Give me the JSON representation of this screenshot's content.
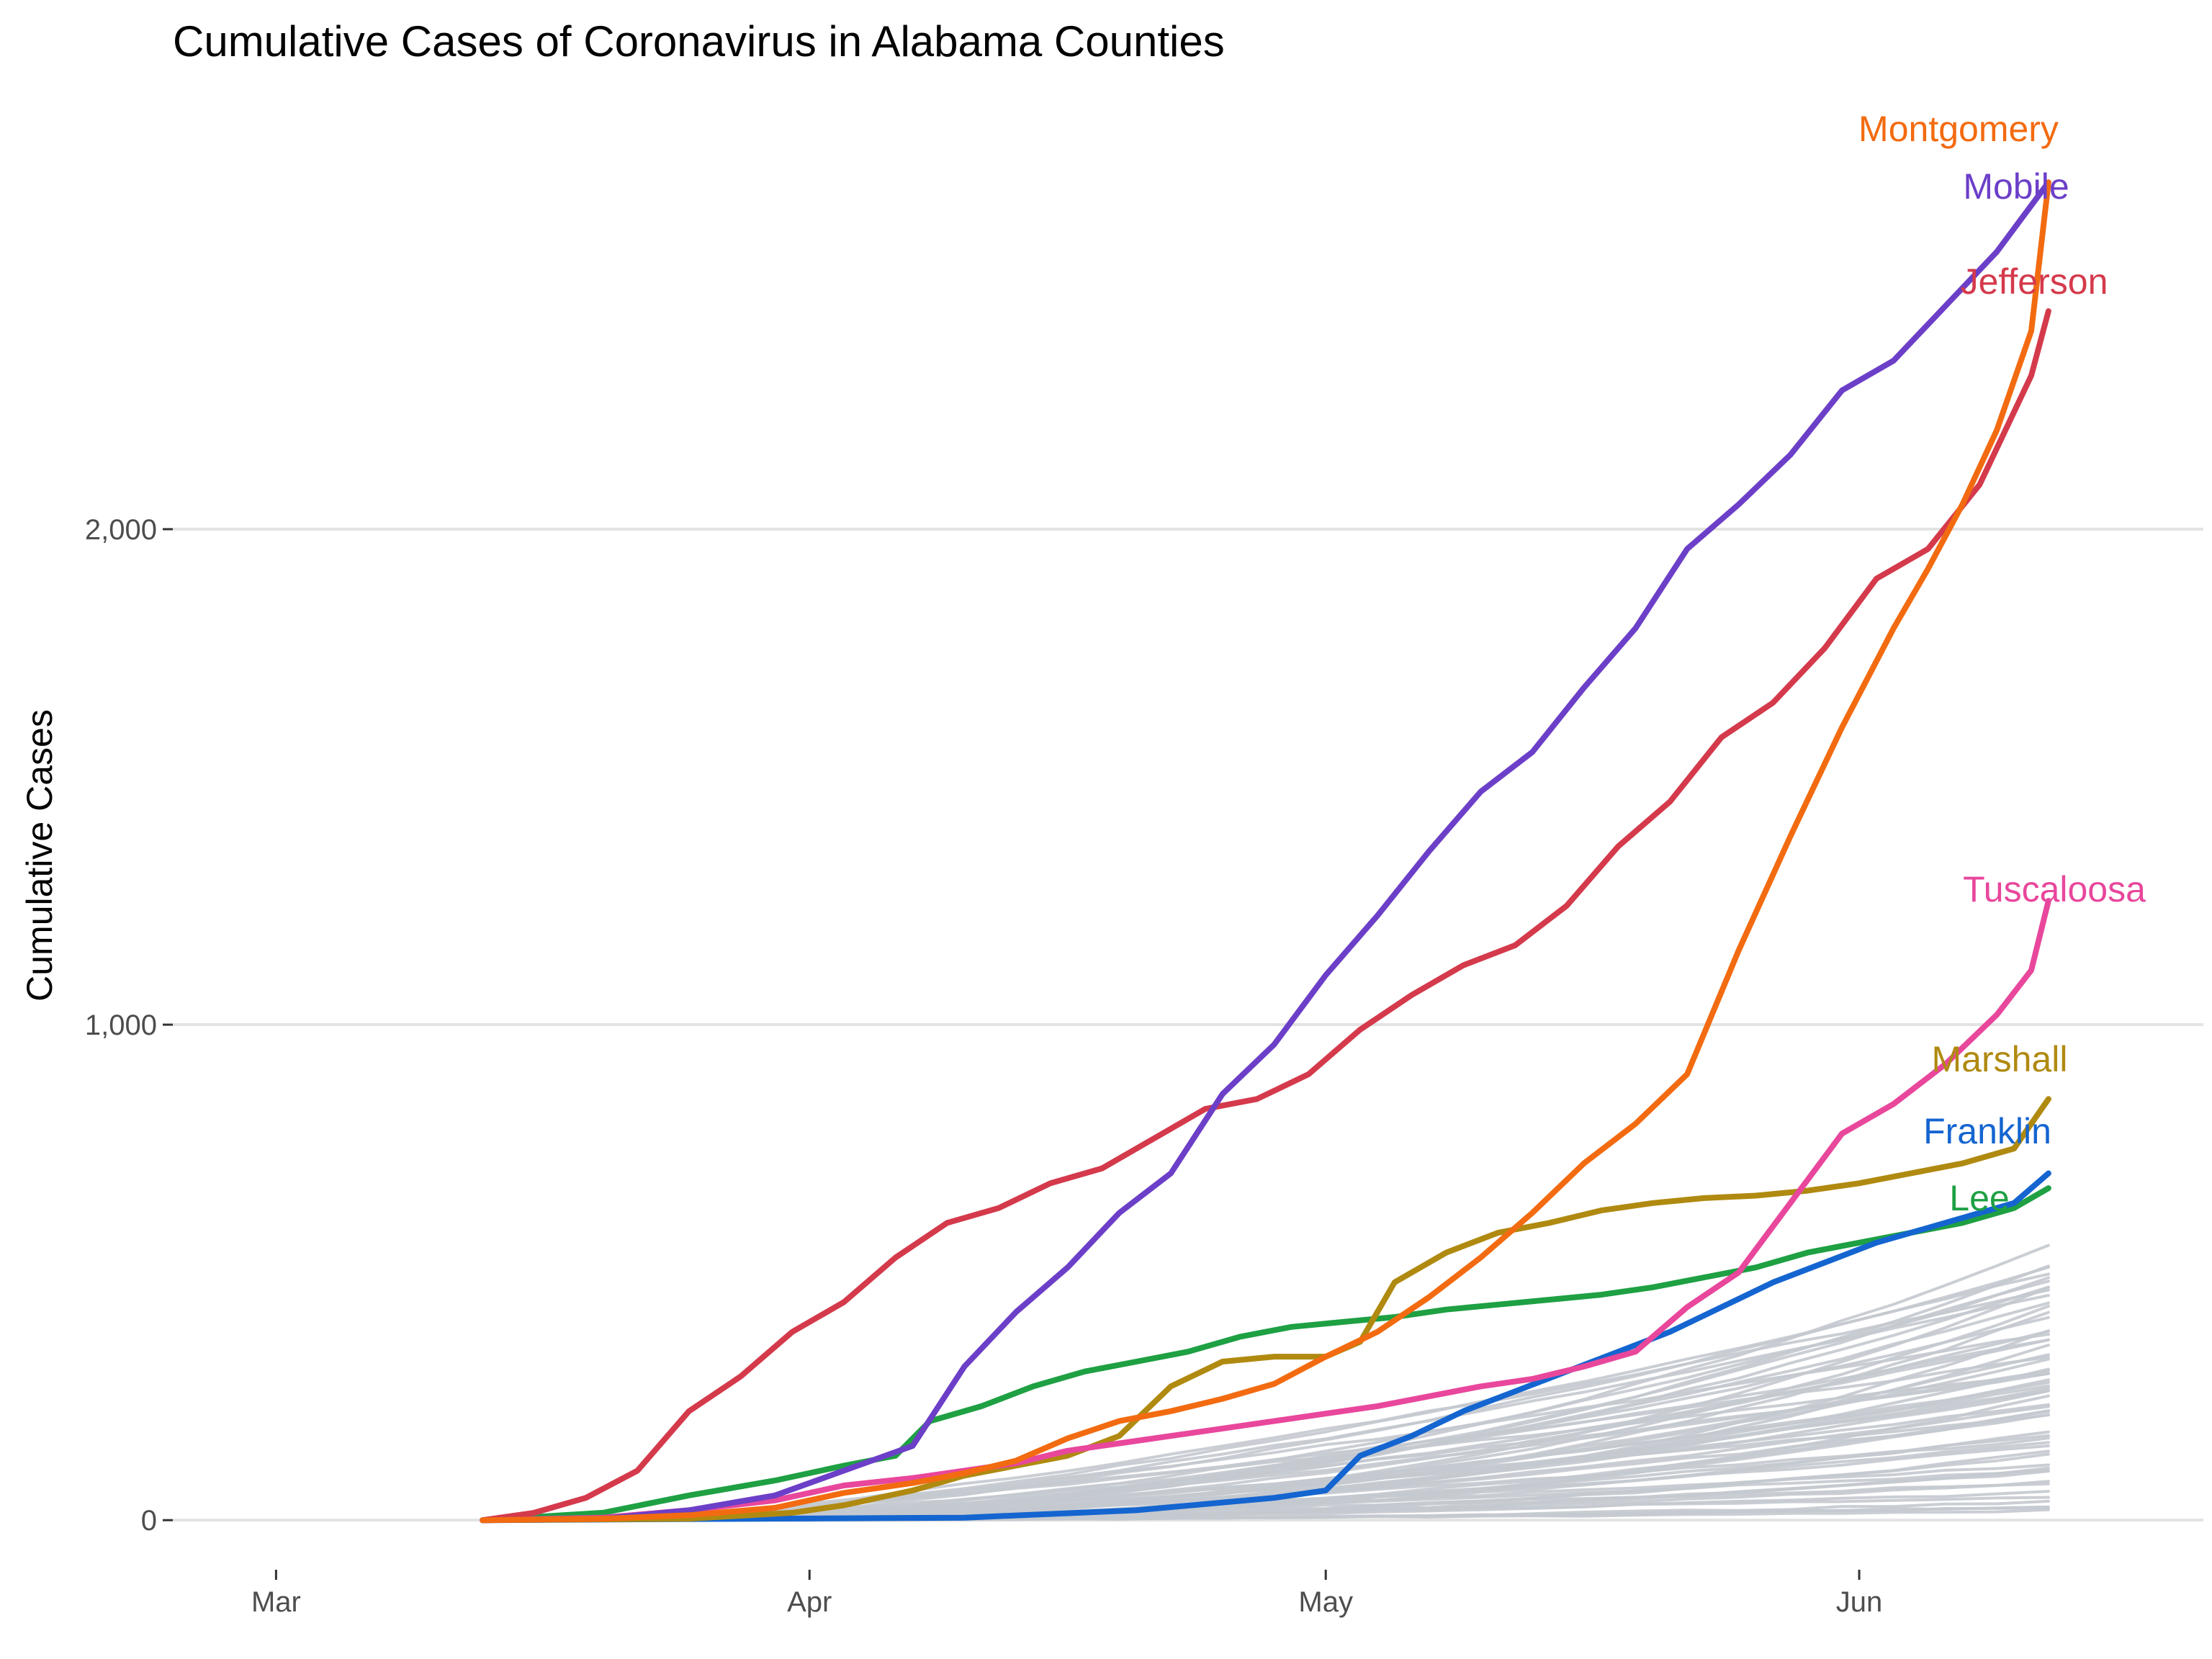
{
  "chart_data": {
    "type": "line",
    "title": "Cumulative Cases of Coronavirus in Alabama Counties",
    "xlabel": "",
    "ylabel": "Cumulative Cases",
    "x_range": [
      "2020-02-24",
      "2020-06-21"
    ],
    "ylim": [
      -100,
      2850
    ],
    "x_ticks": [
      {
        "date": "2020-03-01",
        "label": "Mar"
      },
      {
        "date": "2020-04-01",
        "label": "Apr"
      },
      {
        "date": "2020-05-01",
        "label": "May"
      },
      {
        "date": "2020-06-01",
        "label": "Jun"
      }
    ],
    "y_ticks": [
      {
        "value": 0,
        "label": "0"
      },
      {
        "value": 1000,
        "label": "1,000"
      },
      {
        "value": 2000,
        "label": "2,000"
      }
    ],
    "grid": "horizontal-major",
    "legend": "direct-labels-right",
    "highlighted_series": [
      {
        "name": "Montgomery",
        "color": "#f36b10",
        "points": [
          [
            "2020-03-13",
            0
          ],
          [
            "2020-03-20",
            3
          ],
          [
            "2020-03-25",
            10
          ],
          [
            "2020-03-30",
            25
          ],
          [
            "2020-04-03",
            55
          ],
          [
            "2020-04-07",
            75
          ],
          [
            "2020-04-10",
            95
          ],
          [
            "2020-04-13",
            120
          ],
          [
            "2020-04-16",
            165
          ],
          [
            "2020-04-19",
            200
          ],
          [
            "2020-04-22",
            220
          ],
          [
            "2020-04-25",
            245
          ],
          [
            "2020-04-28",
            275
          ],
          [
            "2020-05-01",
            330
          ],
          [
            "2020-05-04",
            380
          ],
          [
            "2020-05-07",
            450
          ],
          [
            "2020-05-10",
            530
          ],
          [
            "2020-05-13",
            620
          ],
          [
            "2020-05-16",
            720
          ],
          [
            "2020-05-19",
            800
          ],
          [
            "2020-05-22",
            900
          ],
          [
            "2020-05-25",
            1150
          ],
          [
            "2020-05-28",
            1380
          ],
          [
            "2020-05-31",
            1600
          ],
          [
            "2020-06-03",
            1800
          ],
          [
            "2020-06-05",
            1920
          ],
          [
            "2020-06-07",
            2050
          ],
          [
            "2020-06-09",
            2200
          ],
          [
            "2020-06-11",
            2400
          ],
          [
            "2020-06-12",
            2700
          ]
        ]
      },
      {
        "name": "Mobile",
        "color": "#6c3fc8",
        "points": [
          [
            "2020-03-13",
            0
          ],
          [
            "2020-03-20",
            3
          ],
          [
            "2020-03-25",
            20
          ],
          [
            "2020-03-30",
            50
          ],
          [
            "2020-04-03",
            100
          ],
          [
            "2020-04-07",
            150
          ],
          [
            "2020-04-10",
            310
          ],
          [
            "2020-04-13",
            420
          ],
          [
            "2020-04-16",
            510
          ],
          [
            "2020-04-19",
            620
          ],
          [
            "2020-04-22",
            700
          ],
          [
            "2020-04-25",
            860
          ],
          [
            "2020-04-28",
            960
          ],
          [
            "2020-05-01",
            1100
          ],
          [
            "2020-05-04",
            1220
          ],
          [
            "2020-05-07",
            1350
          ],
          [
            "2020-05-10",
            1470
          ],
          [
            "2020-05-13",
            1550
          ],
          [
            "2020-05-16",
            1680
          ],
          [
            "2020-05-19",
            1800
          ],
          [
            "2020-05-22",
            1960
          ],
          [
            "2020-05-25",
            2050
          ],
          [
            "2020-05-28",
            2150
          ],
          [
            "2020-05-31",
            2280
          ],
          [
            "2020-06-03",
            2340
          ],
          [
            "2020-06-06",
            2450
          ],
          [
            "2020-06-09",
            2560
          ],
          [
            "2020-06-12",
            2700
          ]
        ]
      },
      {
        "name": "Jefferson",
        "color": "#d43a4b",
        "points": [
          [
            "2020-03-13",
            0
          ],
          [
            "2020-03-16",
            15
          ],
          [
            "2020-03-19",
            45
          ],
          [
            "2020-03-22",
            100
          ],
          [
            "2020-03-25",
            220
          ],
          [
            "2020-03-28",
            290
          ],
          [
            "2020-03-31",
            380
          ],
          [
            "2020-04-03",
            440
          ],
          [
            "2020-04-06",
            530
          ],
          [
            "2020-04-09",
            600
          ],
          [
            "2020-04-12",
            630
          ],
          [
            "2020-04-15",
            680
          ],
          [
            "2020-04-18",
            710
          ],
          [
            "2020-04-21",
            770
          ],
          [
            "2020-04-24",
            830
          ],
          [
            "2020-04-27",
            850
          ],
          [
            "2020-04-30",
            900
          ],
          [
            "2020-05-03",
            990
          ],
          [
            "2020-05-06",
            1060
          ],
          [
            "2020-05-09",
            1120
          ],
          [
            "2020-05-12",
            1160
          ],
          [
            "2020-05-15",
            1240
          ],
          [
            "2020-05-18",
            1360
          ],
          [
            "2020-05-21",
            1450
          ],
          [
            "2020-05-24",
            1580
          ],
          [
            "2020-05-27",
            1650
          ],
          [
            "2020-05-30",
            1760
          ],
          [
            "2020-06-02",
            1900
          ],
          [
            "2020-06-05",
            1960
          ],
          [
            "2020-06-08",
            2090
          ],
          [
            "2020-06-11",
            2310
          ],
          [
            "2020-06-12",
            2440
          ]
        ]
      },
      {
        "name": "Tuscaloosa",
        "color": "#e8479c",
        "points": [
          [
            "2020-03-13",
            0
          ],
          [
            "2020-03-20",
            5
          ],
          [
            "2020-03-25",
            20
          ],
          [
            "2020-03-30",
            40
          ],
          [
            "2020-04-03",
            70
          ],
          [
            "2020-04-07",
            85
          ],
          [
            "2020-04-10",
            100
          ],
          [
            "2020-04-13",
            115
          ],
          [
            "2020-04-16",
            140
          ],
          [
            "2020-04-19",
            155
          ],
          [
            "2020-04-22",
            170
          ],
          [
            "2020-04-25",
            185
          ],
          [
            "2020-04-28",
            200
          ],
          [
            "2020-05-01",
            215
          ],
          [
            "2020-05-04",
            230
          ],
          [
            "2020-05-07",
            250
          ],
          [
            "2020-05-10",
            270
          ],
          [
            "2020-05-13",
            285
          ],
          [
            "2020-05-16",
            310
          ],
          [
            "2020-05-19",
            340
          ],
          [
            "2020-05-22",
            430
          ],
          [
            "2020-05-25",
            500
          ],
          [
            "2020-05-28",
            640
          ],
          [
            "2020-05-31",
            780
          ],
          [
            "2020-06-03",
            840
          ],
          [
            "2020-06-06",
            920
          ],
          [
            "2020-06-09",
            1020
          ],
          [
            "2020-06-11",
            1110
          ],
          [
            "2020-06-12",
            1250
          ]
        ]
      },
      {
        "name": "Marshall",
        "color": "#b08a10",
        "points": [
          [
            "2020-03-13",
            0
          ],
          [
            "2020-03-25",
            3
          ],
          [
            "2020-03-31",
            15
          ],
          [
            "2020-04-03",
            30
          ],
          [
            "2020-04-07",
            60
          ],
          [
            "2020-04-10",
            90
          ],
          [
            "2020-04-13",
            110
          ],
          [
            "2020-04-16",
            130
          ],
          [
            "2020-04-19",
            170
          ],
          [
            "2020-04-22",
            270
          ],
          [
            "2020-04-25",
            320
          ],
          [
            "2020-04-28",
            330
          ],
          [
            "2020-05-01",
            330
          ],
          [
            "2020-05-03",
            360
          ],
          [
            "2020-05-05",
            480
          ],
          [
            "2020-05-08",
            540
          ],
          [
            "2020-05-11",
            580
          ],
          [
            "2020-05-14",
            600
          ],
          [
            "2020-05-17",
            625
          ],
          [
            "2020-05-20",
            640
          ],
          [
            "2020-05-23",
            650
          ],
          [
            "2020-05-26",
            655
          ],
          [
            "2020-05-29",
            665
          ],
          [
            "2020-06-01",
            680
          ],
          [
            "2020-06-04",
            700
          ],
          [
            "2020-06-07",
            720
          ],
          [
            "2020-06-10",
            750
          ],
          [
            "2020-06-12",
            850
          ]
        ]
      },
      {
        "name": "Franklin",
        "color": "#1465d0",
        "points": [
          [
            "2020-03-13",
            0
          ],
          [
            "2020-04-10",
            5
          ],
          [
            "2020-04-20",
            20
          ],
          [
            "2020-04-28",
            45
          ],
          [
            "2020-05-01",
            60
          ],
          [
            "2020-05-03",
            130
          ],
          [
            "2020-05-06",
            170
          ],
          [
            "2020-05-09",
            220
          ],
          [
            "2020-05-12",
            260
          ],
          [
            "2020-05-15",
            300
          ],
          [
            "2020-05-18",
            340
          ],
          [
            "2020-05-21",
            380
          ],
          [
            "2020-05-24",
            430
          ],
          [
            "2020-05-27",
            480
          ],
          [
            "2020-05-30",
            520
          ],
          [
            "2020-06-02",
            560
          ],
          [
            "2020-06-05",
            590
          ],
          [
            "2020-06-08",
            620
          ],
          [
            "2020-06-10",
            640
          ],
          [
            "2020-06-12",
            700
          ]
        ]
      },
      {
        "name": "Lee",
        "color": "#1ea043",
        "points": [
          [
            "2020-03-13",
            0
          ],
          [
            "2020-03-20",
            15
          ],
          [
            "2020-03-25",
            50
          ],
          [
            "2020-03-30",
            80
          ],
          [
            "2020-04-03",
            110
          ],
          [
            "2020-04-06",
            130
          ],
          [
            "2020-04-08",
            200
          ],
          [
            "2020-04-11",
            230
          ],
          [
            "2020-04-14",
            270
          ],
          [
            "2020-04-17",
            300
          ],
          [
            "2020-04-20",
            320
          ],
          [
            "2020-04-23",
            340
          ],
          [
            "2020-04-26",
            370
          ],
          [
            "2020-04-29",
            390
          ],
          [
            "2020-05-02",
            400
          ],
          [
            "2020-05-05",
            410
          ],
          [
            "2020-05-08",
            425
          ],
          [
            "2020-05-11",
            435
          ],
          [
            "2020-05-14",
            445
          ],
          [
            "2020-05-17",
            455
          ],
          [
            "2020-05-20",
            470
          ],
          [
            "2020-05-23",
            490
          ],
          [
            "2020-05-26",
            510
          ],
          [
            "2020-05-29",
            540
          ],
          [
            "2020-06-01",
            560
          ],
          [
            "2020-06-04",
            580
          ],
          [
            "2020-06-07",
            600
          ],
          [
            "2020-06-10",
            630
          ],
          [
            "2020-06-12",
            670
          ]
        ]
      }
    ],
    "background_series": {
      "color": "#c4c9cf",
      "stroke_color": "#a9b0b8",
      "start_date": "2020-03-20",
      "end_date": "2020-06-12",
      "final_values": [
        555,
        520,
        495,
        470,
        450,
        430,
        410,
        390,
        365,
        345,
        325,
        310,
        300,
        290,
        280,
        270,
        260,
        250,
        240,
        230,
        220,
        210,
        200,
        190,
        180,
        170,
        160,
        150,
        140,
        130,
        120,
        110,
        100,
        90,
        80,
        70,
        60,
        50,
        40,
        30,
        25,
        20
      ],
      "count": 59
    }
  }
}
